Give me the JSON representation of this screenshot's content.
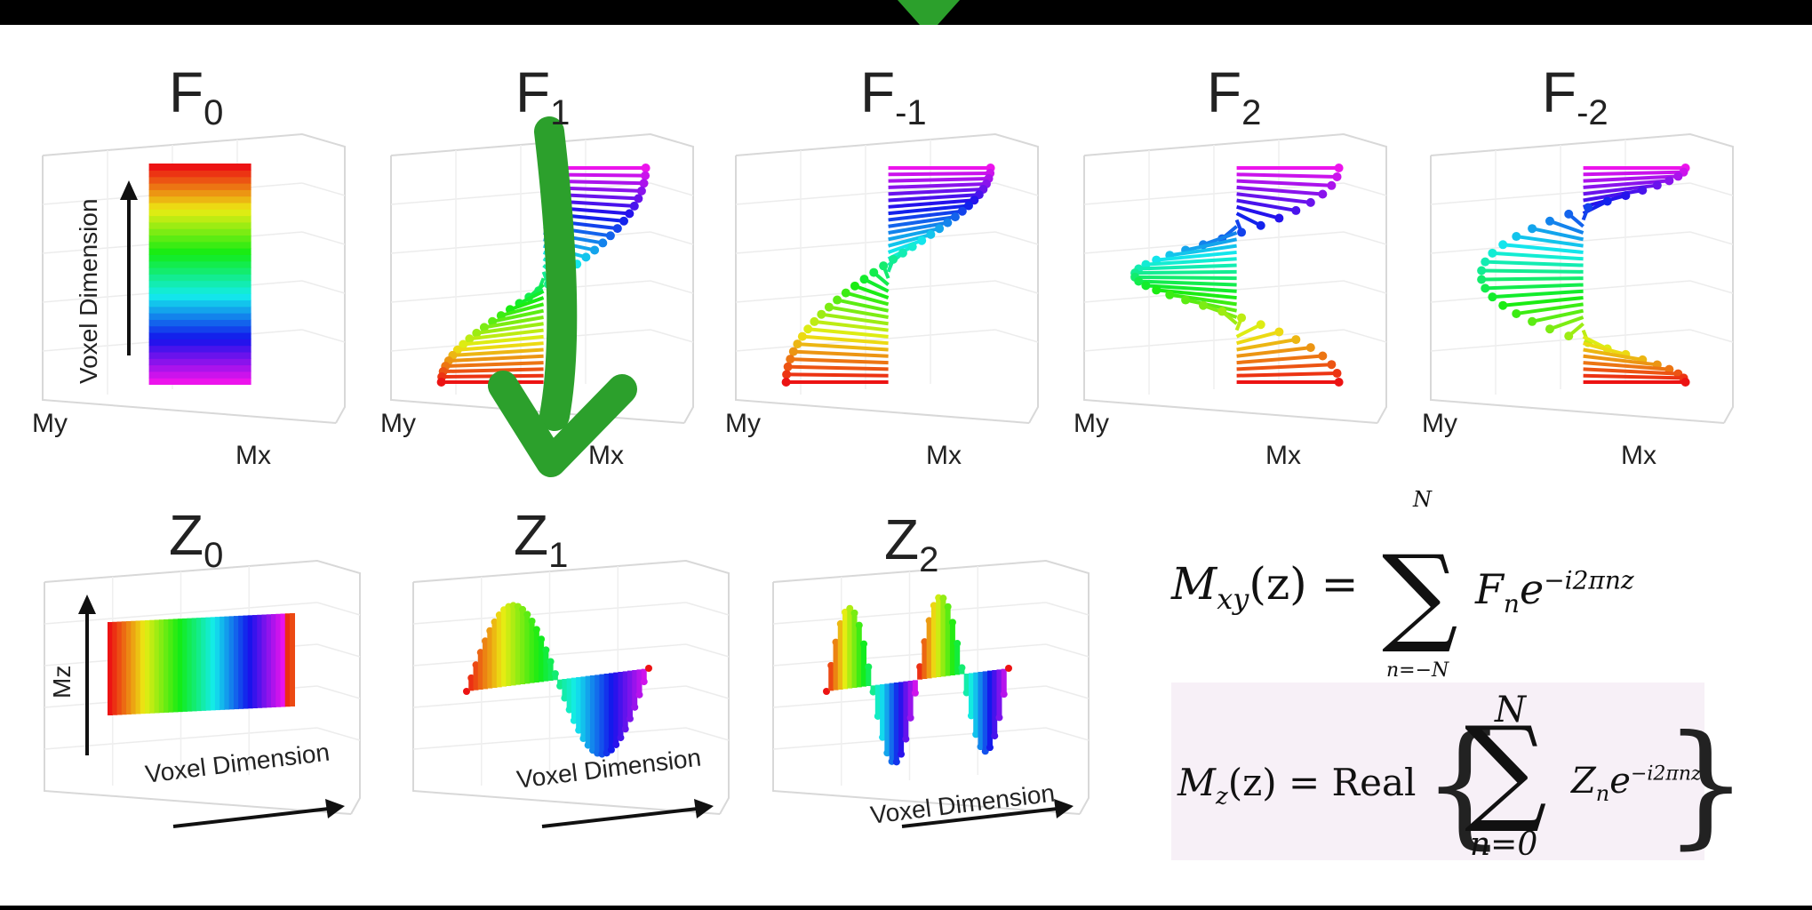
{
  "top_row": [
    {
      "title": "F",
      "sub": "0",
      "axis_x": "Mx",
      "axis_y": "My",
      "vertical_label": "Voxel Dimension",
      "kind": "flat"
    },
    {
      "title": "F",
      "sub": "1",
      "axis_x": "Mx",
      "axis_y": "My",
      "kind": "helix",
      "phase": 0.5,
      "turns": 0.5
    },
    {
      "title": "F",
      "sub": "-1",
      "axis_x": "Mx",
      "axis_y": "My",
      "kind": "helix",
      "phase": 0.5,
      "turns": -0.5
    },
    {
      "title": "F",
      "sub": "2",
      "axis_x": "Mx",
      "axis_y": "My",
      "kind": "helix",
      "phase": 0.5,
      "turns": 1.0
    },
    {
      "title": "F",
      "sub": "-2",
      "axis_x": "Mx",
      "axis_y": "My",
      "kind": "helix",
      "phase": 0.5,
      "turns": -1.0
    }
  ],
  "bottom_row": [
    {
      "title": "Z",
      "sub": "0",
      "axis_label": "Voxel Dimension",
      "vertical_label": "Mz",
      "kind": "flat"
    },
    {
      "title": "Z",
      "sub": "1",
      "axis_label": "Voxel Dimension",
      "kind": "wave",
      "cycles": 1
    },
    {
      "title": "Z",
      "sub": "2",
      "axis_label": "Voxel Dimension",
      "kind": "wave",
      "cycles": 2
    }
  ],
  "equations": {
    "mxy_lhs": "M",
    "mxy_lhs_sub": "xy",
    "mxy_arg": "(z) =",
    "mxy_sum_top": "N",
    "mxy_sum_bottom": "n=−N",
    "mxy_term": "F",
    "mxy_term_sub": "n",
    "mxy_term_exp_base": "e",
    "mxy_term_exp": "−i2πnz",
    "mz_lhs": "M",
    "mz_lhs_sub": "z",
    "mz_arg": "(z) = Real",
    "mz_sum_top": "N",
    "mz_sum_bottom": "n=0",
    "mz_term": "Z",
    "mz_term_sub": "n",
    "mz_term_exp_base": "e",
    "mz_term_exp": "−i2πnz"
  },
  "annotation": {
    "color": "#2ca02c",
    "mark": "checkmark-arrow"
  },
  "colors": {
    "background": "#000000",
    "figure": "#ffffff",
    "grid": "#d8d8d8",
    "box": "#f5eef5"
  }
}
